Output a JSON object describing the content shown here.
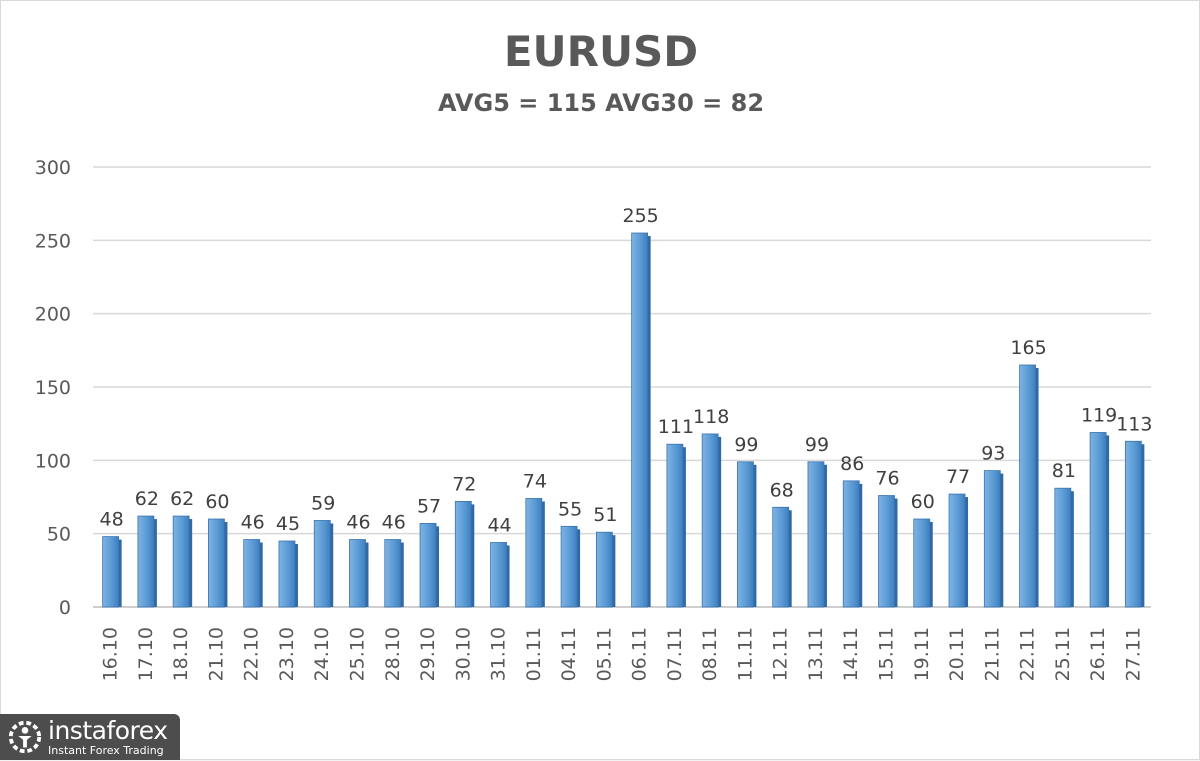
{
  "chart_data": {
    "type": "bar",
    "title": "EURUSD",
    "subtitle": "AVG5 = 115 AVG30 = 82",
    "categories": [
      "16.10",
      "17.10",
      "18.10",
      "21.10",
      "22.10",
      "23.10",
      "24.10",
      "25.10",
      "28.10",
      "29.10",
      "30.10",
      "31.10",
      "01.11",
      "04.11",
      "05.11",
      "06.11",
      "07.11",
      "08.11",
      "11.11",
      "12.11",
      "13.11",
      "14.11",
      "15.11",
      "19.11",
      "20.11",
      "21.11",
      "22.11",
      "25.11",
      "26.11",
      "27.11"
    ],
    "values": [
      48,
      62,
      62,
      60,
      46,
      45,
      59,
      46,
      46,
      57,
      72,
      44,
      74,
      55,
      51,
      255,
      111,
      118,
      99,
      68,
      99,
      86,
      76,
      60,
      77,
      93,
      165,
      81,
      119,
      113
    ],
    "ylim": [
      0,
      300
    ],
    "yticks": [
      0,
      50,
      100,
      150,
      200,
      250,
      300
    ],
    "grid": true,
    "legend": "none",
    "bar_color": "#5b9bd5",
    "xlabel": "",
    "ylabel": ""
  },
  "watermark": {
    "name": "instaforex",
    "tagline": "Instant Forex Trading"
  }
}
